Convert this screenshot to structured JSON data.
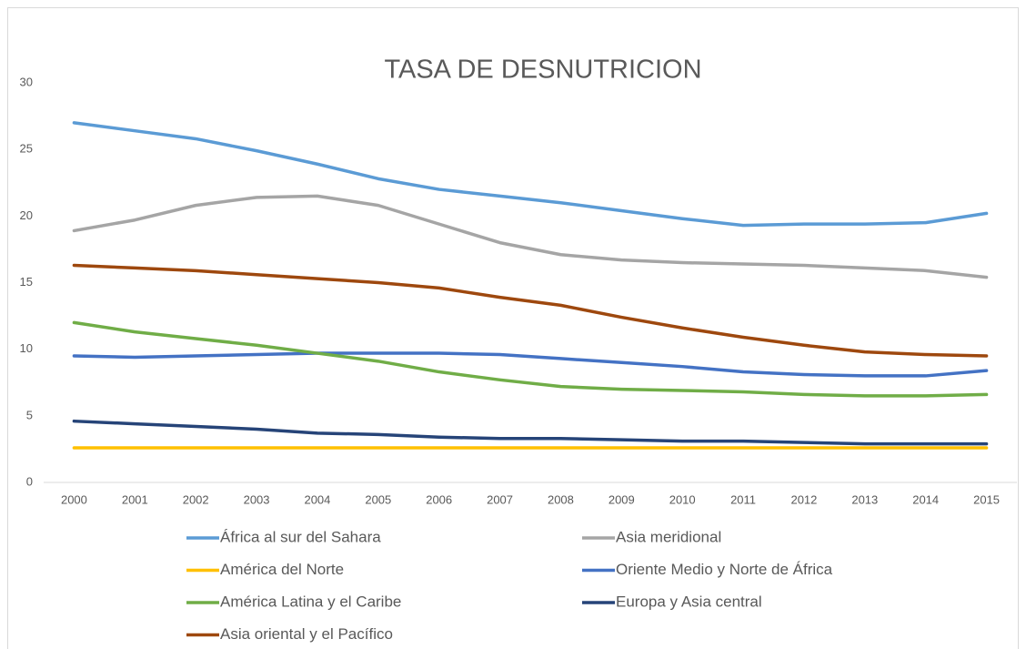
{
  "chart_data": {
    "type": "line",
    "title": "TASA DE DESNUTRICION",
    "categories": [
      "2000",
      "2001",
      "2002",
      "2003",
      "2004",
      "2005",
      "2006",
      "2007",
      "2008",
      "2009",
      "2010",
      "2011",
      "2012",
      "2013",
      "2014",
      "2015"
    ],
    "ylim": [
      0,
      30
    ],
    "yticks": [
      0,
      5,
      10,
      15,
      20,
      25,
      30
    ],
    "grid": false,
    "series": [
      {
        "name": "África al sur del Sahara",
        "color": "#5b9bd5",
        "values": [
          27.0,
          26.4,
          25.8,
          24.9,
          23.9,
          22.8,
          22.0,
          21.5,
          21.0,
          20.4,
          19.8,
          19.3,
          19.4,
          19.4,
          19.5,
          20.2
        ]
      },
      {
        "name": "Asia meridional",
        "color": "#a5a5a5",
        "values": [
          18.9,
          19.7,
          20.8,
          21.4,
          21.5,
          20.8,
          19.4,
          18.0,
          17.1,
          16.7,
          16.5,
          16.4,
          16.3,
          16.1,
          15.9,
          15.4
        ]
      },
      {
        "name": "América del Norte",
        "color": "#ffc000",
        "values": [
          2.6,
          2.6,
          2.6,
          2.6,
          2.6,
          2.6,
          2.6,
          2.6,
          2.6,
          2.6,
          2.6,
          2.6,
          2.6,
          2.6,
          2.6,
          2.6
        ]
      },
      {
        "name": "Oriente Medio y Norte de África",
        "color": "#4472c4",
        "values": [
          9.5,
          9.4,
          9.5,
          9.6,
          9.7,
          9.7,
          9.7,
          9.6,
          9.3,
          9.0,
          8.7,
          8.3,
          8.1,
          8.0,
          8.0,
          8.4
        ]
      },
      {
        "name": "América Latina y el Caribe",
        "color": "#70ad47",
        "values": [
          12.0,
          11.3,
          10.8,
          10.3,
          9.7,
          9.1,
          8.3,
          7.7,
          7.2,
          7.0,
          6.9,
          6.8,
          6.6,
          6.5,
          6.5,
          6.6
        ]
      },
      {
        "name": "Europa y Asia central",
        "color": "#264478",
        "values": [
          4.6,
          4.4,
          4.2,
          4.0,
          3.7,
          3.6,
          3.4,
          3.3,
          3.3,
          3.2,
          3.1,
          3.1,
          3.0,
          2.9,
          2.9,
          2.9
        ]
      },
      {
        "name": "Asia oriental y el Pacífico",
        "color": "#9e480e",
        "values": [
          16.3,
          16.1,
          15.9,
          15.6,
          15.3,
          15.0,
          14.6,
          13.9,
          13.3,
          12.4,
          11.6,
          10.9,
          10.3,
          9.8,
          9.6,
          9.5
        ]
      }
    ]
  }
}
